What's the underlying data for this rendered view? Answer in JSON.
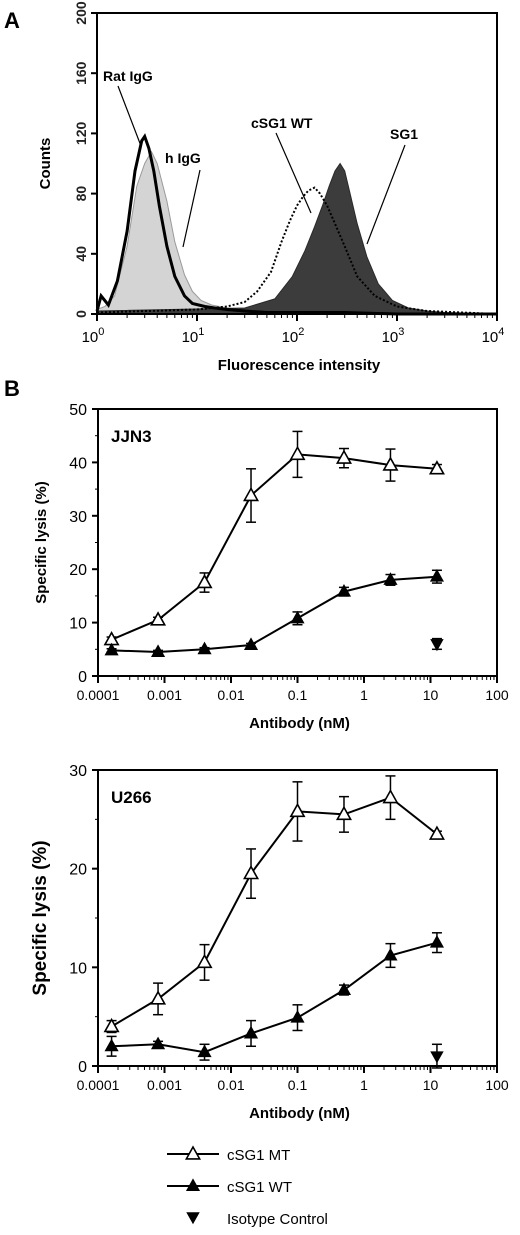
{
  "panel_labels": {
    "a": "A",
    "b": "B"
  },
  "chart_data": [
    {
      "type": "area",
      "panel": "A",
      "xlabel": "Fluorescence intensity",
      "ylabel": "Counts",
      "xscale": "log",
      "xlim": [
        1,
        10000
      ],
      "ylim": [
        0,
        200
      ],
      "xticks": [
        {
          "base": "10",
          "exp": "0"
        },
        {
          "base": "10",
          "exp": "1"
        },
        {
          "base": "10",
          "exp": "2"
        },
        {
          "base": "10",
          "exp": "3"
        },
        {
          "base": "10",
          "exp": "4"
        }
      ],
      "yticks": [
        "0",
        "40",
        "80",
        "120",
        "160",
        "200"
      ],
      "annotations": [
        "Rat IgG",
        "h IgG",
        "cSG1 WT",
        "SG1"
      ],
      "series": [
        {
          "name": "Rat IgG",
          "style": "thick-black-line",
          "x": [
            1,
            1.1,
            1.3,
            1.6,
            2.0,
            2.4,
            2.8,
            3.0,
            3.3,
            3.7,
            4.2,
            5.0,
            6.0,
            7.5,
            9,
            12,
            15,
            20,
            30,
            50,
            100,
            300,
            1000,
            10000
          ],
          "y": [
            2,
            12,
            6,
            22,
            55,
            95,
            115,
            118,
            110,
            95,
            72,
            45,
            25,
            12,
            7,
            5,
            4,
            3,
            2,
            1,
            1,
            1,
            0,
            0
          ]
        },
        {
          "name": "h IgG",
          "style": "light-gray-fill",
          "x": [
            1,
            1.2,
            1.5,
            2.0,
            2.5,
            3.0,
            3.5,
            4.0,
            5.0,
            6.0,
            7.5,
            9,
            11,
            14,
            20,
            30,
            50,
            100,
            1000,
            10000
          ],
          "y": [
            3,
            5,
            12,
            45,
            85,
            100,
            108,
            100,
            75,
            48,
            26,
            15,
            9,
            6,
            4,
            3,
            2,
            1,
            0,
            0
          ]
        },
        {
          "name": "cSG1 WT",
          "style": "dotted-line",
          "x": [
            1,
            10,
            20,
            30,
            40,
            55,
            70,
            85,
            100,
            115,
            130,
            150,
            170,
            200,
            240,
            300,
            400,
            600,
            1000,
            2000,
            10000
          ],
          "y": [
            1,
            3,
            5,
            8,
            15,
            28,
            48,
            62,
            72,
            78,
            82,
            84,
            80,
            72,
            60,
            45,
            25,
            12,
            5,
            2,
            0
          ]
        },
        {
          "name": "SG1",
          "style": "dark-gray-fill",
          "x": [
            1,
            30,
            60,
            90,
            120,
            150,
            180,
            210,
            240,
            270,
            300,
            340,
            400,
            500,
            650,
            900,
            1300,
            2000,
            3000,
            10000
          ],
          "y": [
            2,
            4,
            10,
            25,
            42,
            58,
            72,
            85,
            95,
            100,
            95,
            80,
            60,
            38,
            20,
            9,
            4,
            2,
            1,
            0
          ]
        }
      ]
    },
    {
      "type": "line",
      "panel": "B",
      "title": "JJN3",
      "xlabel": "Antibody (nM)",
      "ylabel": "Specific lysis (%)",
      "xscale": "log",
      "xlim": [
        0.0001,
        100
      ],
      "ylim": [
        0,
        50
      ],
      "xticks": [
        "0.0001",
        "0.001",
        "0.01",
        "0.1",
        "1",
        "10",
        "100"
      ],
      "yticks": [
        "0",
        "10",
        "20",
        "30",
        "40",
        "50"
      ],
      "series": [
        {
          "name": "cSG1 MT",
          "marker": "open-triangle-up",
          "x": [
            0.00016,
            0.0008,
            0.004,
            0.02,
            0.1,
            0.5,
            2.5,
            12.5
          ],
          "y": [
            6.8,
            10.5,
            17.5,
            33.8,
            41.5,
            40.8,
            39.5,
            38.8
          ],
          "err": [
            0.5,
            0.5,
            1.8,
            5.0,
            4.3,
            1.8,
            3.0,
            0.8
          ]
        },
        {
          "name": "cSG1 WT",
          "marker": "filled-triangle-up",
          "x": [
            0.00016,
            0.0008,
            0.004,
            0.02,
            0.1,
            0.5,
            2.5,
            12.5
          ],
          "y": [
            4.8,
            4.5,
            5.0,
            5.8,
            10.8,
            15.8,
            18.0,
            18.6
          ],
          "err": [
            0.3,
            0.3,
            0.3,
            0.3,
            1.2,
            0.8,
            1.0,
            1.2
          ]
        },
        {
          "name": "Isotype Control",
          "marker": "filled-triangle-down",
          "x": [
            12.5
          ],
          "y": [
            6.0
          ],
          "err": [
            1.0
          ]
        }
      ]
    },
    {
      "type": "line",
      "panel": "B",
      "title": "U266",
      "xlabel": "Antibody (nM)",
      "ylabel": "Specific lysis (%)",
      "xscale": "log",
      "xlim": [
        0.0001,
        100
      ],
      "ylim": [
        0,
        30
      ],
      "xticks": [
        "0.0001",
        "0.001",
        "0.01",
        "0.1",
        "1",
        "10",
        "100"
      ],
      "yticks": [
        "0",
        "10",
        "20",
        "30"
      ],
      "series": [
        {
          "name": "cSG1 MT",
          "marker": "open-triangle-up",
          "x": [
            0.00016,
            0.0008,
            0.004,
            0.02,
            0.1,
            0.5,
            2.5,
            12.5
          ],
          "y": [
            4.0,
            6.8,
            10.5,
            19.5,
            25.8,
            25.5,
            27.2,
            23.5
          ],
          "err": [
            0.6,
            1.6,
            1.8,
            2.5,
            3.0,
            1.8,
            2.2,
            0.3
          ]
        },
        {
          "name": "cSG1 WT",
          "marker": "filled-triangle-up",
          "x": [
            0.00016,
            0.0008,
            0.004,
            0.02,
            0.1,
            0.5,
            2.5,
            12.5
          ],
          "y": [
            2.0,
            2.2,
            1.4,
            3.3,
            4.9,
            7.7,
            11.2,
            12.5
          ],
          "err": [
            1.0,
            0.3,
            0.8,
            1.3,
            1.3,
            0.5,
            1.2,
            1.0
          ]
        },
        {
          "name": "Isotype Control",
          "marker": "filled-triangle-down",
          "x": [
            12.5
          ],
          "y": [
            1.0
          ],
          "err": [
            1.2
          ]
        }
      ]
    }
  ],
  "legend": [
    {
      "label": "cSG1 MT",
      "marker": "open-triangle-up"
    },
    {
      "label": "cSG1 WT",
      "marker": "filled-triangle-up"
    },
    {
      "label": "Isotype Control",
      "marker": "filled-triangle-down"
    }
  ]
}
